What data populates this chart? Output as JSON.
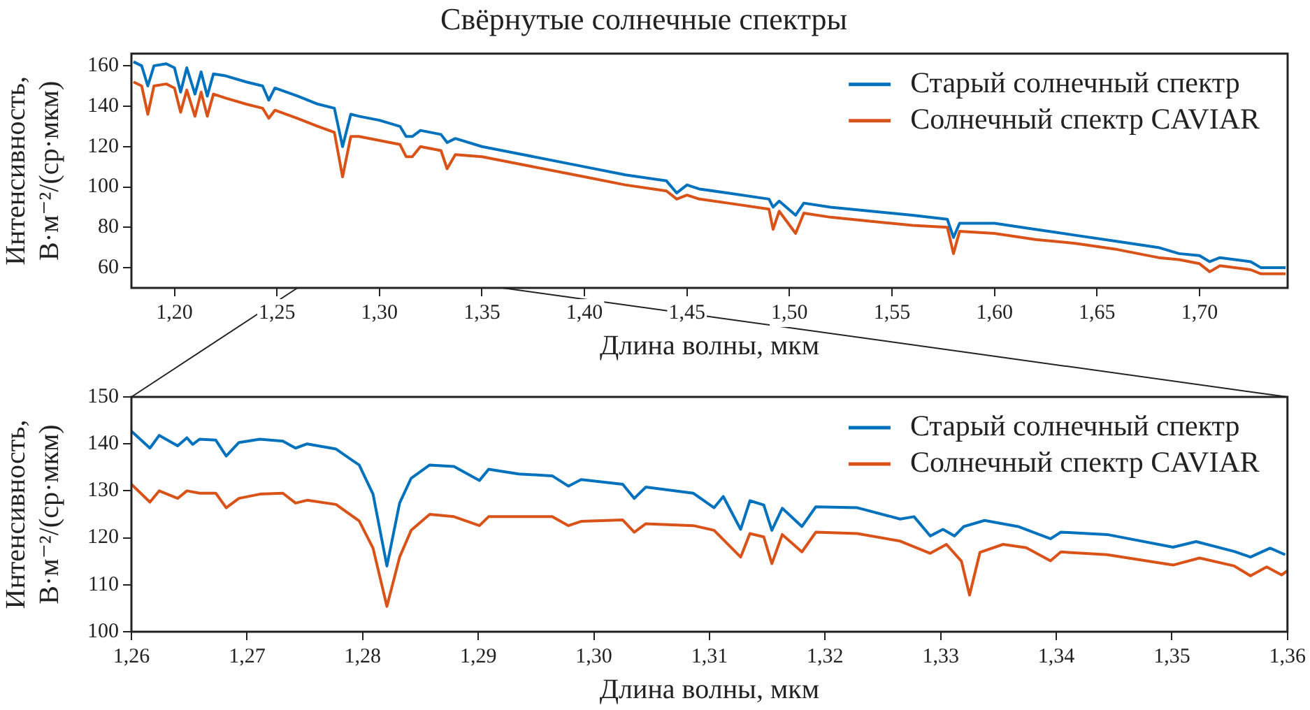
{
  "chart_data": [
    {
      "type": "line",
      "title": "Свёрнутые солнечные спектры",
      "xlabel": "Длина волны, мкм",
      "ylabel": "Интенсивность, В·м⁻²/(ср·мкм)",
      "x": [
        1.18,
        1.184,
        1.187,
        1.19,
        1.196,
        1.2,
        1.203,
        1.206,
        1.21,
        1.213,
        1.216,
        1.219,
        1.225,
        1.235,
        1.243,
        1.246,
        1.249,
        1.26,
        1.27,
        1.278,
        1.282,
        1.286,
        1.29,
        1.3,
        1.31,
        1.313,
        1.316,
        1.32,
        1.33,
        1.333,
        1.337,
        1.35,
        1.37,
        1.4,
        1.42,
        1.44,
        1.445,
        1.45,
        1.456,
        1.47,
        1.49,
        1.492,
        1.495,
        1.503,
        1.507,
        1.52,
        1.54,
        1.56,
        1.577,
        1.58,
        1.583,
        1.6,
        1.62,
        1.64,
        1.66,
        1.68,
        1.69,
        1.7,
        1.705,
        1.71,
        1.725,
        1.73,
        1.742
      ],
      "series": [
        {
          "name": "Старый солнечный спектр",
          "color": "#0072bd",
          "values": [
            162,
            160,
            150,
            160,
            161,
            159,
            147,
            159,
            146,
            157,
            145,
            156,
            155,
            152,
            150,
            143,
            149,
            145,
            141,
            139,
            120,
            136,
            135,
            133,
            130,
            125,
            125,
            128,
            126,
            122,
            124,
            120,
            116,
            110,
            106,
            103,
            97,
            101,
            99,
            97,
            94,
            90,
            93,
            86,
            92,
            90,
            88,
            86,
            84,
            75,
            82,
            82,
            79,
            76,
            73,
            70,
            67,
            66,
            63,
            65,
            63,
            60,
            60
          ]
        },
        {
          "name": "Солнечный спектр CAVIAR",
          "color": "#d95319",
          "values": [
            152,
            150,
            136,
            150,
            151,
            149,
            137,
            148,
            135,
            147,
            135,
            146,
            144,
            141,
            139,
            134,
            138,
            134,
            130,
            127,
            105,
            125,
            125,
            123,
            121,
            115,
            115,
            120,
            118,
            109,
            116,
            115,
            111,
            105,
            101,
            98,
            94,
            96,
            94,
            92,
            89,
            79,
            88,
            77,
            87,
            85,
            83,
            81,
            80,
            67,
            78,
            77,
            74,
            72,
            69,
            65,
            64,
            62,
            58,
            61,
            59,
            57,
            57
          ]
        }
      ],
      "xlim": [
        1.179,
        1.743
      ],
      "ylim": [
        50,
        166
      ],
      "xticks": [
        {
          "value": 1.2,
          "label": "1,20"
        },
        {
          "value": 1.25,
          "label": "1,25"
        },
        {
          "value": 1.3,
          "label": "1,30"
        },
        {
          "value": 1.35,
          "label": "1,35"
        },
        {
          "value": 1.4,
          "label": "1,40"
        },
        {
          "value": 1.45,
          "label": "1,45"
        },
        {
          "value": 1.5,
          "label": "1,50"
        },
        {
          "value": 1.55,
          "label": "1,55"
        },
        {
          "value": 1.6,
          "label": "1,60"
        },
        {
          "value": 1.65,
          "label": "1,65"
        },
        {
          "value": 1.7,
          "label": "1,70"
        }
      ],
      "yticks": [
        60,
        80,
        100,
        120,
        140,
        160
      ],
      "legend": "top right"
    },
    {
      "type": "line",
      "xlabel": "Длина волны, мкм",
      "ylabel": "Интенсивность, В·м⁻²/(ср·мкм)",
      "series": [
        {
          "name": "Старый солнечный спектр",
          "color": "#0072bd",
          "x": [
            1.26,
            1.2616,
            1.2624,
            1.264,
            1.2648,
            1.2653,
            1.2659,
            1.2673,
            1.2682,
            1.2693,
            1.2711,
            1.2731,
            1.2742,
            1.2752,
            1.2777,
            1.2797,
            1.2809,
            1.2821,
            1.2832,
            1.2842,
            1.2858,
            1.2879,
            1.2901,
            1.2909,
            1.2935,
            1.2964,
            1.2978,
            1.2989,
            1.3025,
            1.3035,
            1.3045,
            1.3086,
            1.3104,
            1.3112,
            1.3127,
            1.3135,
            1.3147,
            1.3154,
            1.3163,
            1.318,
            1.3192,
            1.3228,
            1.3265,
            1.3277,
            1.3291,
            1.3302,
            1.3312,
            1.332,
            1.3338,
            1.3367,
            1.3395,
            1.3404,
            1.3444,
            1.3501,
            1.3521,
            1.3554,
            1.3568,
            1.3585,
            1.3598
          ],
          "values": [
            142.7,
            139.1,
            141.8,
            139.6,
            141.3,
            139.9,
            141,
            140.8,
            137.4,
            140.3,
            141,
            140.6,
            139.1,
            140,
            138.9,
            135.5,
            129.3,
            114,
            127.4,
            132.7,
            135.5,
            135.2,
            132.2,
            134.6,
            133.6,
            133.2,
            131,
            132.4,
            131.4,
            128.4,
            130.8,
            129.5,
            126.4,
            128.8,
            121.8,
            127.9,
            127,
            121.6,
            126.3,
            122.4,
            126.6,
            126.4,
            124,
            124.5,
            120.4,
            121.8,
            120.4,
            122.4,
            123.7,
            122.4,
            119.8,
            121.2,
            120.7,
            118,
            119.2,
            117.1,
            115.9,
            117.8,
            116.4
          ]
        },
        {
          "name": "Солнечный спектр CAVIAR",
          "color": "#d95319",
          "x": [
            1.26,
            1.2616,
            1.2624,
            1.264,
            1.2648,
            1.2659,
            1.2673,
            1.2682,
            1.2693,
            1.2711,
            1.2731,
            1.2742,
            1.2752,
            1.2777,
            1.2797,
            1.2809,
            1.2821,
            1.2832,
            1.2842,
            1.2858,
            1.2879,
            1.2901,
            1.2909,
            1.2935,
            1.2964,
            1.2978,
            1.2989,
            1.3025,
            1.3035,
            1.3045,
            1.3086,
            1.3104,
            1.3127,
            1.3135,
            1.3147,
            1.3154,
            1.3163,
            1.318,
            1.3192,
            1.3228,
            1.3265,
            1.3291,
            1.3305,
            1.3318,
            1.3325,
            1.3334,
            1.3354,
            1.3374,
            1.3395,
            1.3404,
            1.3444,
            1.3501,
            1.3524,
            1.3554,
            1.3568,
            1.3582,
            1.3595,
            1.36
          ],
          "values": [
            131.4,
            127.6,
            130,
            128.4,
            130,
            129.5,
            129.5,
            126.4,
            128.4,
            129.3,
            129.5,
            127.4,
            128,
            127.1,
            123.6,
            117.8,
            105.4,
            115.9,
            121.6,
            125,
            124.5,
            122.6,
            124.5,
            124.5,
            124.5,
            122.6,
            123.5,
            123.8,
            121.2,
            123,
            122.6,
            121.6,
            115.9,
            120.9,
            120.2,
            114.5,
            120.7,
            117,
            121.2,
            120.9,
            119.3,
            116.7,
            118.6,
            115,
            107.8,
            116.9,
            118.6,
            117.9,
            115.1,
            117,
            116.4,
            114.2,
            115.7,
            114,
            111.9,
            113.8,
            112.1,
            113
          ]
        }
      ],
      "xlim": [
        1.26,
        1.36
      ],
      "ylim": [
        100,
        150
      ],
      "xticks": [
        {
          "value": 1.26,
          "label": "1,26"
        },
        {
          "value": 1.27,
          "label": "1,27"
        },
        {
          "value": 1.28,
          "label": "1,28"
        },
        {
          "value": 1.29,
          "label": "1,29"
        },
        {
          "value": 1.3,
          "label": "1,30"
        },
        {
          "value": 1.31,
          "label": "1,31"
        },
        {
          "value": 1.32,
          "label": "1,32"
        },
        {
          "value": 1.33,
          "label": "1,33"
        },
        {
          "value": 1.34,
          "label": "1,34"
        },
        {
          "value": 1.35,
          "label": "1,35"
        },
        {
          "value": 1.36,
          "label": "1,36"
        }
      ],
      "yticks": [
        100,
        110,
        120,
        130,
        140,
        150
      ],
      "legend": "top right"
    }
  ]
}
